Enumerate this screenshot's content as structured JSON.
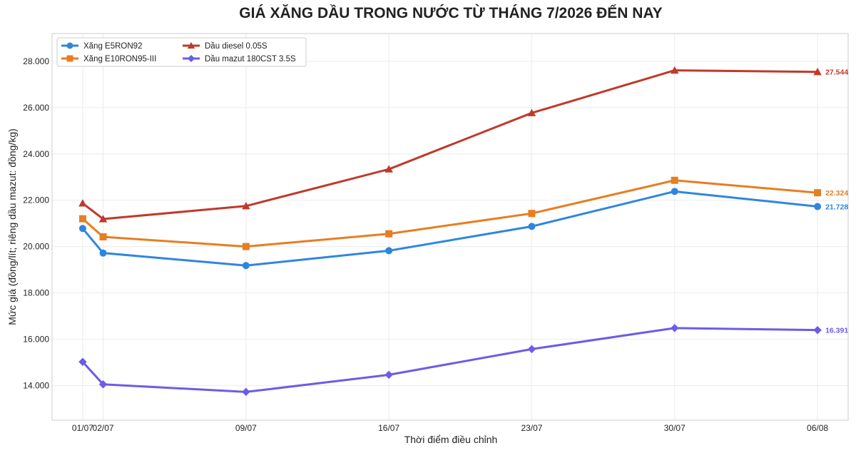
{
  "chart_data": {
    "type": "line",
    "title": "GIÁ XĂNG DẦU TRONG NƯỚC TỪ THÁNG 7/2026 ĐẾN NAY",
    "xlabel": "Thời điểm điều chỉnh",
    "ylabel": "Mức giá (đồng/lít; riêng dầu mazut: đồng/kg)",
    "x": [
      "01/07",
      "02/07",
      "09/07",
      "16/07",
      "23/07",
      "30/07",
      "06/08"
    ],
    "x_days": [
      1,
      2,
      9,
      16,
      23,
      30,
      37
    ],
    "xlim_days": [
      -0.5,
      38.5
    ],
    "ylim": [
      12500,
      29200
    ],
    "yticks": [
      14000,
      16000,
      18000,
      20000,
      22000,
      24000,
      26000,
      28000
    ],
    "ytick_labels": [
      "14.000",
      "16.000",
      "18.000",
      "20.000",
      "22.000",
      "24.000",
      "26.000",
      "28.000"
    ],
    "grid": true,
    "legend_position": "top-left",
    "series": [
      {
        "name": "Xăng E5RON92",
        "color": "#2e86de",
        "marker": "circle",
        "values": [
          20780,
          19720,
          19180,
          19820,
          20870,
          22380,
          21728
        ],
        "end_label": "21.728"
      },
      {
        "name": "Xăng E10RON95-III",
        "color": "#e67e22",
        "marker": "square",
        "values": [
          21200,
          20420,
          20000,
          20550,
          21430,
          22860,
          22324
        ],
        "end_label": "22.324"
      },
      {
        "name": "Dầu diesel 0.05S",
        "color": "#c0392b",
        "marker": "triangle",
        "values": [
          21870,
          21190,
          21750,
          23340,
          25770,
          27610,
          27544
        ],
        "end_label": "27.544"
      },
      {
        "name": "Dầu mazut 180CST 3.5S",
        "color": "#6c5ce7",
        "marker": "diamond",
        "values": [
          15020,
          14050,
          13720,
          14460,
          15570,
          16480,
          16391
        ],
        "end_label": "16.391"
      }
    ]
  }
}
